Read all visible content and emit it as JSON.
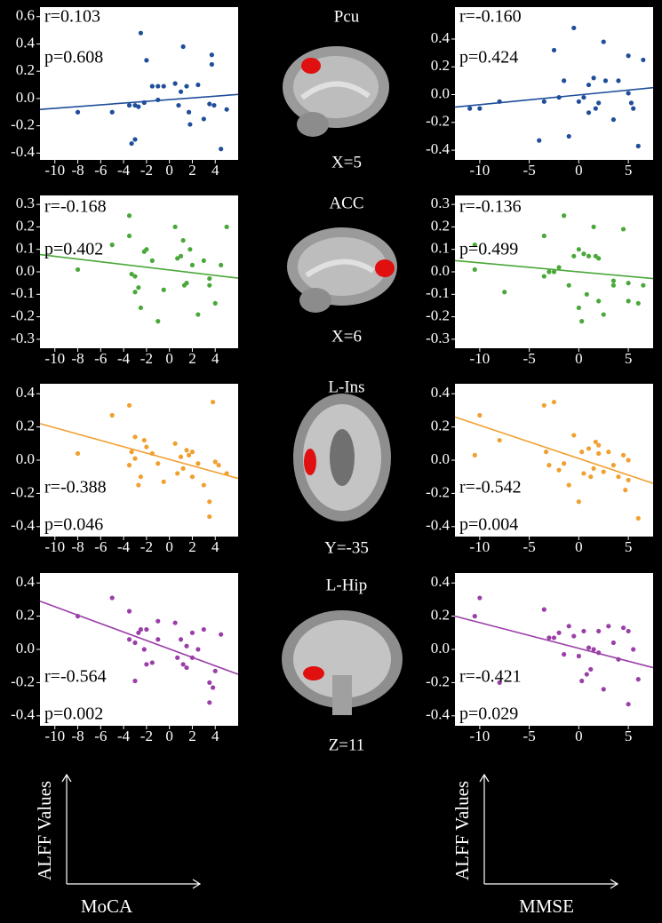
{
  "chart_data": [
    {
      "type": "scatter",
      "color": "#1f4e9a",
      "annotations": [
        "r=0.103",
        "p=0.608"
      ],
      "xlim": [
        -11.3,
        6
      ],
      "ylim": [
        -0.45,
        0.67
      ],
      "xticks": [
        -10,
        -8,
        -6,
        -4,
        -2,
        0,
        2,
        4
      ],
      "yticks": [
        -0.4,
        -0.2,
        {
          "value": 0,
          "label": "0.0"
        },
        0.2,
        0.4,
        0.6
      ],
      "x": [
        -8,
        -5,
        -3.5,
        -3.3,
        -3,
        -3,
        -2.7,
        -2.5,
        -2.2,
        -2,
        -1.5,
        -1,
        -1,
        -0.5,
        0.5,
        0.8,
        1,
        1.2,
        1.5,
        1.7,
        1.8,
        2.5,
        3,
        3.5,
        3.7,
        3.7,
        3.9,
        4.5,
        5
      ],
      "values": [
        -0.1,
        -0.1,
        -0.05,
        -0.33,
        -0.3,
        -0.05,
        -0.06,
        0.48,
        -0.03,
        0.28,
        0.09,
        -0.01,
        0.09,
        0.09,
        0.11,
        -0.05,
        0.05,
        0.38,
        0.09,
        -0.1,
        -0.19,
        0.1,
        -0.15,
        -0.04,
        0.32,
        0.25,
        -0.05,
        -0.37,
        -0.08
      ],
      "fit_line": {
        "x": [
          -11.3,
          6
        ],
        "values": [
          -0.08,
          0.03
        ]
      }
    },
    {
      "type": "scatter",
      "color": "#1f4e9a",
      "annotations": [
        "r=-0.160",
        "p=0.424"
      ],
      "xlim": [
        -12.5,
        7.5
      ],
      "ylim": [
        -0.47,
        0.63
      ],
      "xticks": [
        -10,
        -5,
        0,
        5
      ],
      "yticks": [
        -0.4,
        -0.2,
        {
          "value": 0,
          "label": "0.0"
        },
        0.2,
        0.4
      ],
      "x": [
        -11,
        -10,
        -8,
        -4,
        -3.5,
        -2.5,
        -2,
        -1.5,
        -1,
        -0.5,
        0,
        0.5,
        1,
        1,
        1.5,
        1.7,
        2,
        2.5,
        2.7,
        3.5,
        4,
        5,
        5,
        5.3,
        5.5,
        6,
        6.5
      ],
      "values": [
        -0.1,
        -0.1,
        -0.05,
        -0.33,
        -0.05,
        0.32,
        -0.02,
        0.1,
        -0.3,
        0.48,
        -0.05,
        -0.02,
        0.07,
        -0.13,
        0.12,
        -0.1,
        -0.06,
        0.38,
        0.1,
        -0.18,
        0.1,
        0.28,
        0.01,
        -0.06,
        -0.1,
        -0.37,
        0.25
      ],
      "fit_line": {
        "x": [
          -12.5,
          7.5
        ],
        "values": [
          -0.09,
          0.05
        ]
      }
    },
    {
      "type": "scatter",
      "color": "#4aa83a",
      "annotations": [
        "r=-0.168",
        "p=0.402"
      ],
      "xlim": [
        -11.3,
        6
      ],
      "ylim": [
        -0.34,
        0.34
      ],
      "xticks": [
        -10,
        -8,
        -6,
        -4,
        -2,
        0,
        2,
        4
      ],
      "yticks": [
        -0.3,
        -0.2,
        -0.1,
        {
          "value": 0,
          "label": "0.0"
        },
        0.1,
        0.2,
        0.3
      ],
      "x": [
        -8,
        -5,
        -3.5,
        -3.5,
        -3.3,
        -3,
        -3,
        -2.7,
        -2.5,
        -2.2,
        -2,
        -1.5,
        -1,
        -0.5,
        0.5,
        0.7,
        1,
        1.2,
        1.3,
        1.5,
        1.8,
        2,
        2.5,
        3,
        3.5,
        3.5,
        4,
        4.5,
        5
      ],
      "values": [
        0.01,
        0.12,
        0.25,
        0.16,
        -0.01,
        -0.02,
        -0.09,
        -0.07,
        -0.16,
        0.09,
        0.1,
        0.05,
        -0.22,
        -0.08,
        0.2,
        0.06,
        0.07,
        0.14,
        -0.06,
        -0.05,
        0.1,
        0.03,
        -0.19,
        0.05,
        -0.06,
        -0.03,
        -0.14,
        0.03,
        0.2
      ],
      "fit_line": {
        "x": [
          -11.3,
          6
        ],
        "values": [
          0.077,
          -0.028
        ]
      }
    },
    {
      "type": "scatter",
      "color": "#4aa83a",
      "annotations": [
        "r=-0.136",
        "p=0.499"
      ],
      "xlim": [
        -12.5,
        7.5
      ],
      "ylim": [
        -0.34,
        0.34
      ],
      "xticks": [
        -10,
        -5,
        0,
        5
      ],
      "yticks": [
        -0.3,
        -0.2,
        -0.1,
        {
          "value": 0,
          "label": "0.0"
        },
        0.1,
        0.2,
        0.3
      ],
      "x": [
        -10.5,
        -10.5,
        -7.5,
        -3.5,
        -3.5,
        -3,
        -2.5,
        -2,
        -1.5,
        -1,
        -0.5,
        0,
        0,
        0.3,
        0.5,
        0.8,
        1,
        1.5,
        1.7,
        2,
        2,
        2.5,
        3.5,
        3.5,
        4.5,
        5,
        5,
        6,
        6.5
      ],
      "values": [
        0.01,
        0.12,
        -0.09,
        0.16,
        -0.02,
        0,
        0,
        0.02,
        0.25,
        -0.06,
        0.07,
        0.1,
        -0.16,
        -0.22,
        0.08,
        -0.1,
        0.07,
        0.2,
        0.07,
        0.06,
        -0.13,
        -0.19,
        -0.06,
        -0.04,
        0.19,
        -0.05,
        -0.13,
        -0.14,
        -0.06
      ],
      "fit_line": {
        "x": [
          -12.5,
          7.5
        ],
        "values": [
          0.05,
          -0.03
        ]
      }
    },
    {
      "type": "scatter",
      "color": "#f0a030",
      "annotations": [
        "r=-0.388",
        "p=0.046"
      ],
      "xlim": [
        -11.3,
        6
      ],
      "ylim": [
        -0.46,
        0.46
      ],
      "xticks": [
        -10,
        -8,
        -6,
        -4,
        -2,
        0,
        2,
        4
      ],
      "yticks": [
        -0.4,
        -0.2,
        {
          "value": 0,
          "label": "0.0"
        },
        0.2,
        0.4
      ],
      "x": [
        -8,
        -5,
        -3.5,
        -3.5,
        -3.3,
        -3,
        -3,
        -2.7,
        -2.5,
        -2.2,
        -2,
        -1.5,
        -1,
        -0.5,
        0.5,
        0.7,
        1,
        1.2,
        1.5,
        1.7,
        2,
        2,
        2.5,
        3,
        3.5,
        3.5,
        3.8,
        4,
        4.3,
        5
      ],
      "values": [
        0.04,
        0.27,
        0.33,
        -0.03,
        0.05,
        0.14,
        0.01,
        -0.15,
        -0.1,
        0.12,
        0.08,
        0.04,
        -0.02,
        -0.13,
        0.1,
        -0.08,
        0.02,
        -0.05,
        0.06,
        0.03,
        0.05,
        -0.1,
        -0.02,
        -0.15,
        -0.25,
        -0.34,
        0.35,
        -0.01,
        -0.03,
        -0.08
      ],
      "fit_line": {
        "x": [
          -11.3,
          6
        ],
        "values": [
          0.22,
          -0.11
        ]
      }
    },
    {
      "type": "scatter",
      "color": "#f0a030",
      "annotations": [
        "r=-0.542",
        "p=0.004"
      ],
      "xlim": [
        -12.5,
        7.5
      ],
      "ylim": [
        -0.46,
        0.46
      ],
      "xticks": [
        -10,
        -5,
        0,
        5
      ],
      "yticks": [
        -0.4,
        -0.2,
        {
          "value": 0,
          "label": "0.0"
        },
        0.2,
        0.4
      ],
      "x": [
        -10.5,
        -10,
        -8,
        -3.5,
        -3.3,
        -3,
        -2.5,
        -2,
        -1.5,
        -1,
        -0.5,
        0,
        0.3,
        0.5,
        1,
        1.2,
        1.5,
        1.7,
        2,
        2,
        2.5,
        3,
        3.5,
        4,
        4.5,
        4.7,
        5,
        5,
        6
      ],
      "values": [
        0.03,
        0.27,
        0.12,
        0.33,
        0.05,
        -0.03,
        0.35,
        -0.06,
        -0.02,
        -0.15,
        0.15,
        -0.25,
        0.05,
        -0.08,
        0.07,
        -0.1,
        -0.05,
        0.11,
        0.09,
        0.04,
        -0.07,
        0.05,
        -0.03,
        -0.1,
        0.03,
        -0.18,
        0,
        -0.12,
        -0.35
      ],
      "fit_line": {
        "x": [
          -12.5,
          7.5
        ],
        "values": [
          0.26,
          -0.14
        ]
      }
    },
    {
      "type": "scatter",
      "color": "#9b3fa8",
      "annotations": [
        "r=-0.564",
        "p=0.002"
      ],
      "xlim": [
        -11.3,
        6
      ],
      "ylim": [
        -0.46,
        0.46
      ],
      "xticks": [
        -10,
        -8,
        -6,
        -4,
        -2,
        0,
        2,
        4
      ],
      "yticks": [
        -0.4,
        -0.2,
        {
          "value": 0,
          "label": "0.0"
        },
        0.2,
        0.4
      ],
      "x": [
        -8,
        -5,
        -3.5,
        -3.5,
        -3,
        -3,
        -2.7,
        -2.5,
        -2.2,
        -2,
        -2,
        -1.5,
        -1,
        -1,
        0.5,
        0.7,
        1,
        1.2,
        1.5,
        1.5,
        2,
        2,
        2.5,
        3,
        3.5,
        3.5,
        3.8,
        4,
        4.5
      ],
      "values": [
        0.2,
        0.31,
        0.23,
        0.06,
        -0.19,
        0.04,
        0.1,
        0.12,
        0,
        0.12,
        -0.09,
        -0.08,
        0.06,
        0.17,
        0.16,
        -0.05,
        0.06,
        -0.09,
        -0.11,
        0.02,
        0.1,
        -0.05,
        0,
        0.12,
        -0.2,
        -0.32,
        -0.23,
        -0.13,
        0.09
      ],
      "fit_line": {
        "x": [
          -11.3,
          6
        ],
        "values": [
          0.29,
          -0.15
        ]
      }
    },
    {
      "type": "scatter",
      "color": "#9b3fa8",
      "annotations": [
        "r=-0.421",
        "p=0.029"
      ],
      "xlim": [
        -12.5,
        7.5
      ],
      "ylim": [
        -0.46,
        0.46
      ],
      "xticks": [
        -10,
        -5,
        0,
        5
      ],
      "yticks": [
        -0.4,
        -0.2,
        {
          "value": 0,
          "label": "0.0"
        },
        0.2,
        0.4
      ],
      "x": [
        -10.5,
        -10,
        -8,
        -3.5,
        -3,
        -2.5,
        -2,
        -1.5,
        -1,
        -0.5,
        0,
        0.3,
        0.5,
        0.8,
        1,
        1.2,
        1.5,
        2,
        2,
        2.5,
        3,
        3.5,
        4,
        4.5,
        5,
        5,
        5.5,
        6
      ],
      "values": [
        0.2,
        0.31,
        -0.2,
        0.24,
        0.07,
        0.07,
        0.1,
        -0.03,
        0.14,
        0.08,
        -0.04,
        -0.19,
        0.11,
        -0.15,
        0.01,
        -0.12,
        0,
        -0.02,
        0.11,
        -0.24,
        0.14,
        0.04,
        -0.06,
        0.13,
        0.11,
        -0.33,
        0,
        -0.18
      ],
      "fit_line": {
        "x": [
          -12.5,
          7.5
        ],
        "values": [
          0.2,
          -0.11
        ]
      }
    }
  ],
  "regions": [
    {
      "name": "Pcu",
      "coord": "X=5"
    },
    {
      "name": "ACC",
      "coord": "X=6"
    },
    {
      "name": "L-Ins",
      "coord": "Y=-35"
    },
    {
      "name": "L-Hip",
      "coord": "Z=11"
    }
  ],
  "axis_key": {
    "y_label": "ALFF Values",
    "x_labels": [
      "MoCA",
      "MMSE"
    ]
  }
}
